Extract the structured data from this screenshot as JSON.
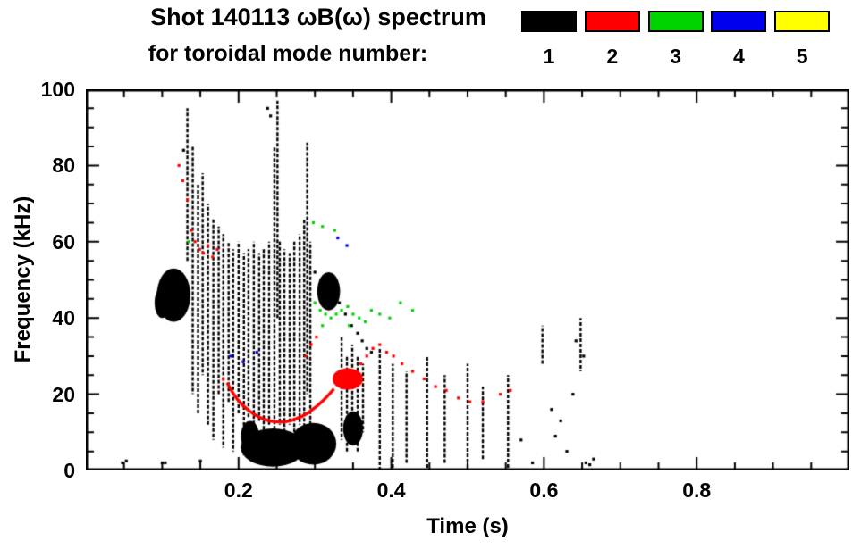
{
  "chart_data": {
    "type": "scatter",
    "title": "Shot 140113 ωB(ω) spectrum",
    "subtitle": "for toroidal mode number:",
    "xlabel": "Time (s)",
    "ylabel": "Frequency (kHz)",
    "xlim": [
      0.0,
      1.0
    ],
    "ylim": [
      0,
      100
    ],
    "xticks": [
      0.2,
      0.4,
      0.6,
      0.8
    ],
    "xtick_labels": [
      "0.2",
      "0.4",
      "0.6",
      "0.8"
    ],
    "xminor_step": 0.05,
    "yticks": [
      0,
      20,
      40,
      60,
      80,
      100
    ],
    "ytick_labels": [
      "0",
      "20",
      "40",
      "60",
      "80",
      "100"
    ],
    "yminor_step": 5,
    "grid": false,
    "legend_position": "top-right",
    "legend": [
      {
        "label": "1",
        "color": "#000000"
      },
      {
        "label": "2",
        "color": "#ff0000"
      },
      {
        "label": "3",
        "color": "#00d400"
      },
      {
        "label": "4",
        "color": "#0000ee"
      },
      {
        "label": "5",
        "color": "#ffff00"
      }
    ],
    "series": [
      {
        "name": "1",
        "color": "#000000",
        "streaks": [
          [
            0.133,
            55,
            95
          ],
          [
            0.14,
            20,
            85
          ],
          [
            0.147,
            15,
            75
          ],
          [
            0.153,
            25,
            78
          ],
          [
            0.16,
            12,
            70
          ],
          [
            0.167,
            8,
            66
          ],
          [
            0.174,
            20,
            64
          ],
          [
            0.18,
            6,
            62
          ],
          [
            0.187,
            18,
            60
          ],
          [
            0.193,
            5,
            58
          ],
          [
            0.2,
            15,
            60
          ],
          [
            0.207,
            4,
            57
          ],
          [
            0.213,
            14,
            58
          ],
          [
            0.22,
            3,
            60
          ],
          [
            0.227,
            13,
            57
          ],
          [
            0.233,
            3,
            58
          ],
          [
            0.24,
            12,
            60
          ],
          [
            0.247,
            3,
            85
          ],
          [
            0.251,
            40,
            97
          ],
          [
            0.254,
            12,
            60
          ],
          [
            0.26,
            3,
            58
          ],
          [
            0.267,
            12,
            57
          ],
          [
            0.273,
            3,
            60
          ],
          [
            0.28,
            12,
            62
          ],
          [
            0.286,
            3,
            66
          ],
          [
            0.29,
            20,
            86
          ],
          [
            0.294,
            5,
            60
          ],
          [
            0.335,
            8,
            35
          ],
          [
            0.342,
            5,
            30
          ],
          [
            0.349,
            8,
            33
          ],
          [
            0.356,
            5,
            30
          ],
          [
            0.363,
            10,
            28
          ],
          [
            0.385,
            0,
            32
          ],
          [
            0.402,
            0,
            28
          ],
          [
            0.42,
            2,
            26
          ],
          [
            0.447,
            0,
            30
          ],
          [
            0.47,
            2,
            25
          ],
          [
            0.5,
            0,
            28
          ],
          [
            0.52,
            3,
            22
          ],
          [
            0.553,
            0,
            25
          ],
          [
            0.598,
            28,
            38
          ],
          [
            0.648,
            26,
            40
          ]
        ],
        "blobs": [
          [
            0.1,
            44,
            0.01,
            4
          ],
          [
            0.115,
            46,
            0.022,
            7
          ],
          [
            0.318,
            47,
            0.015,
            5
          ],
          [
            0.245,
            6,
            0.042,
            5
          ],
          [
            0.298,
            7,
            0.03,
            5.5
          ],
          [
            0.215,
            9,
            0.012,
            4
          ],
          [
            0.35,
            11,
            0.013,
            4.5
          ]
        ],
        "points": [
          [
            0.048,
            2
          ],
          [
            0.053,
            2.5
          ],
          [
            0.1,
            2
          ],
          [
            0.104,
            2
          ],
          [
            0.15,
            2.5
          ],
          [
            0.128,
            84
          ],
          [
            0.238,
            95
          ],
          [
            0.242,
            93
          ],
          [
            0.3,
            52
          ],
          [
            0.308,
            50
          ],
          [
            0.316,
            48
          ],
          [
            0.324,
            46
          ],
          [
            0.332,
            44
          ],
          [
            0.34,
            41
          ],
          [
            0.348,
            38
          ],
          [
            0.356,
            36
          ],
          [
            0.362,
            34
          ],
          [
            0.368,
            32
          ],
          [
            0.374,
            31
          ],
          [
            0.57,
            8
          ],
          [
            0.585,
            2
          ],
          [
            0.61,
            16
          ],
          [
            0.615,
            9
          ],
          [
            0.622,
            13
          ],
          [
            0.63,
            5
          ],
          [
            0.638,
            20
          ],
          [
            0.642,
            34
          ],
          [
            0.652,
            30
          ],
          [
            0.655,
            2
          ],
          [
            0.66,
            1.5
          ],
          [
            0.665,
            3
          ]
        ]
      },
      {
        "name": "2",
        "color": "#ff0000",
        "streaks": [],
        "blobs": [
          [
            0.343,
            24,
            0.02,
            2.8
          ]
        ],
        "curve": [
          [
            0.185,
            23
          ],
          [
            0.192,
            20.5
          ],
          [
            0.199,
            18.5
          ],
          [
            0.206,
            17
          ],
          [
            0.213,
            15.8
          ],
          [
            0.22,
            14.8
          ],
          [
            0.227,
            14
          ],
          [
            0.234,
            13.4
          ],
          [
            0.241,
            13
          ],
          [
            0.248,
            12.8
          ],
          [
            0.255,
            12.7
          ],
          [
            0.262,
            12.8
          ],
          [
            0.269,
            13.1
          ],
          [
            0.276,
            13.6
          ],
          [
            0.283,
            14.2
          ],
          [
            0.29,
            15
          ],
          [
            0.297,
            16
          ],
          [
            0.304,
            17.1
          ],
          [
            0.311,
            18.4
          ],
          [
            0.318,
            19.8
          ],
          [
            0.325,
            21.4
          ]
        ],
        "points": [
          [
            0.122,
            80
          ],
          [
            0.127,
            76
          ],
          [
            0.133,
            71
          ],
          [
            0.138,
            63
          ],
          [
            0.143,
            60
          ],
          [
            0.149,
            58
          ],
          [
            0.154,
            57
          ],
          [
            0.16,
            59
          ],
          [
            0.166,
            56
          ],
          [
            0.172,
            58
          ],
          [
            0.18,
            24
          ],
          [
            0.288,
            30
          ],
          [
            0.295,
            33
          ],
          [
            0.302,
            35
          ],
          [
            0.36,
            28
          ],
          [
            0.368,
            30
          ],
          [
            0.376,
            32
          ],
          [
            0.385,
            33
          ],
          [
            0.394,
            31
          ],
          [
            0.403,
            30
          ],
          [
            0.414,
            28
          ],
          [
            0.428,
            26
          ],
          [
            0.443,
            24
          ],
          [
            0.458,
            22
          ],
          [
            0.472,
            21
          ],
          [
            0.488,
            19
          ],
          [
            0.503,
            18
          ],
          [
            0.52,
            18
          ],
          [
            0.543,
            20
          ],
          [
            0.556,
            21
          ]
        ]
      },
      {
        "name": "3",
        "color": "#00d400",
        "streaks": [],
        "blobs": [],
        "points": [
          [
            0.135,
            60
          ],
          [
            0.298,
            65
          ],
          [
            0.31,
            64
          ],
          [
            0.326,
            63
          ],
          [
            0.3,
            44
          ],
          [
            0.307,
            42
          ],
          [
            0.314,
            41
          ],
          [
            0.321,
            40
          ],
          [
            0.328,
            41
          ],
          [
            0.335,
            42
          ],
          [
            0.343,
            43
          ],
          [
            0.35,
            41
          ],
          [
            0.358,
            40
          ],
          [
            0.366,
            39
          ],
          [
            0.374,
            42
          ],
          [
            0.385,
            41
          ],
          [
            0.398,
            40
          ],
          [
            0.412,
            44
          ],
          [
            0.428,
            42
          ],
          [
            0.31,
            38
          ],
          [
            0.345,
            38
          ]
        ]
      },
      {
        "name": "4",
        "color": "#0000ee",
        "streaks": [],
        "blobs": [],
        "points": [
          [
            0.19,
            30
          ],
          [
            0.206,
            28.5
          ],
          [
            0.224,
            31
          ],
          [
            0.33,
            61
          ],
          [
            0.342,
            59
          ]
        ]
      },
      {
        "name": "5",
        "color": "#ffff00",
        "streaks": [],
        "blobs": [],
        "points": []
      }
    ]
  }
}
